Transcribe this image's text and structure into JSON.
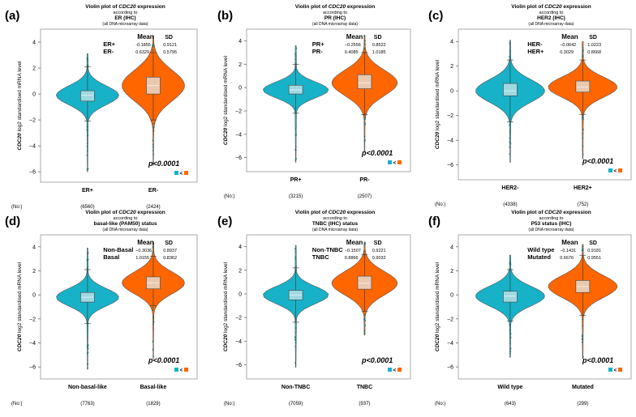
{
  "figure": {
    "title_prefix": "Violin plot of ",
    "gene": "CDC20",
    "title_suffix": " expression",
    "according_to": "according to",
    "data_note": "(all DNA microarray data)",
    "ylabel_gene": "CDC20",
    "ylabel_rest": " log2 standardised mRNA level",
    "n_label": "(No:)",
    "mean_header": "Mean",
    "sd_header": "SD",
    "pvalue": "p<0.0001",
    "compare_symbol": "<",
    "colors": {
      "group1": "#17b2c8",
      "group2": "#ff6600",
      "outline": "#555555",
      "box": "#e9c9b0"
    }
  },
  "chart_data": [
    {
      "panel_label": "(a)",
      "type": "violin",
      "subtitle": "ER (IHC)",
      "groups": [
        {
          "name": "ER+",
          "stat_label": "ER+",
          "mean": "-0.1855",
          "sd": "0.9121",
          "n": "(6560)",
          "median": -0.1,
          "q1": -0.55,
          "q3": 0.25,
          "whisker_low": -2.1,
          "whisker_high": 2.1,
          "min": -6.0,
          "max": 3.1,
          "color": "#17b2c8"
        },
        {
          "name": "ER-",
          "stat_label": "ER-",
          "mean": "0.6329",
          "sd": "0.5795",
          "n": "(2424)",
          "median": 0.65,
          "q1": 0.0,
          "q3": 1.3,
          "whisker_low": -2.0,
          "whisker_high": 3.2,
          "min": -5.5,
          "max": 4.5,
          "color": "#ff6600"
        }
      ],
      "yticks": [
        4,
        2,
        0,
        -2,
        -4,
        -6
      ],
      "ylim": [
        -6.8,
        5.0
      ]
    },
    {
      "panel_label": "(b)",
      "type": "violin",
      "subtitle": "PR (IHC)",
      "groups": [
        {
          "name": "PR+",
          "stat_label": "PR+",
          "mean": "−0.2556",
          "sd": "0.8522",
          "n": "(3215)",
          "median": -0.2,
          "q1": -0.55,
          "q3": 0.2,
          "whisker_low": -2.2,
          "whisker_high": 2.0,
          "min": -6.4,
          "max": 3.6,
          "color": "#17b2c8"
        },
        {
          "name": "PR-",
          "stat_label": "PR-",
          "mean": "0.4085",
          "sd": "1.0185",
          "n": "(2507)",
          "median": 0.4,
          "q1": -0.1,
          "q3": 1.1,
          "whisker_low": -2.3,
          "whisker_high": 3.0,
          "min": -5.5,
          "max": 4.5,
          "color": "#ff6600"
        }
      ],
      "yticks": [
        4,
        2,
        0,
        -2,
        -4,
        -6
      ],
      "ylim": [
        -7.2,
        5.0
      ]
    },
    {
      "panel_label": "(c)",
      "type": "violin",
      "subtitle": "HER2 (IHC)",
      "groups": [
        {
          "name": "HER2-",
          "stat_label": "HER-",
          "mean": "−0.0642",
          "sd": "1.0223",
          "n": "(4338)",
          "median": 0.0,
          "q1": -0.4,
          "q3": 0.6,
          "whisker_low": -2.5,
          "whisker_high": 2.5,
          "min": -5.8,
          "max": 4.1,
          "color": "#17b2c8"
        },
        {
          "name": "HER2+",
          "stat_label": "HER+",
          "mean": "0.3029",
          "sd": "0.8668",
          "n": "(752)",
          "median": 0.3,
          "q1": -0.1,
          "q3": 0.8,
          "whisker_low": -1.9,
          "whisker_high": 2.5,
          "min": -5.5,
          "max": 4.0,
          "color": "#ff6600"
        }
      ],
      "yticks": [
        4,
        2,
        0,
        -2,
        -4,
        -6
      ],
      "ylim": [
        -7.2,
        5.0
      ]
    },
    {
      "panel_label": "(d)",
      "type": "violin",
      "subtitle": "basal-like (PAM50) status",
      "groups": [
        {
          "name": "Non-basal-like",
          "stat_label": "Non-Basal",
          "mean": "−0.3036",
          "sd": "0.8937",
          "n": "(7763)",
          "median": -0.2,
          "q1": -0.6,
          "q3": 0.2,
          "whisker_low": -2.4,
          "whisker_high": 2.1,
          "min": -6.2,
          "max": 3.9,
          "color": "#17b2c8"
        },
        {
          "name": "Basal-like",
          "stat_label": "Basal",
          "mean": "1.0155",
          "sd": "0.8362",
          "n": "(1829)",
          "median": 1.0,
          "q1": 0.5,
          "q3": 1.5,
          "whisker_low": -0.9,
          "whisker_high": 3.2,
          "min": -5.3,
          "max": 4.4,
          "color": "#ff6600"
        }
      ],
      "yticks": [
        4,
        2,
        0,
        -2,
        -4,
        -6
      ],
      "ylim": [
        -7.0,
        5.0
      ]
    },
    {
      "panel_label": "(e)",
      "type": "violin",
      "subtitle": "TNBC (IHC) status",
      "groups": [
        {
          "name": "Non-TNBC",
          "stat_label": "Non-TNBC",
          "mean": "−0.1507",
          "sd": "0.9221",
          "n": "(7059)",
          "median": -0.1,
          "q1": -0.5,
          "q3": 0.3,
          "whisker_low": -2.4,
          "whisker_high": 2.2,
          "min": -6.2,
          "max": 4.1,
          "color": "#17b2c8"
        },
        {
          "name": "TNBC",
          "stat_label": "TNBC",
          "mean": "0.8866",
          "sd": "0.9032",
          "n": "(937)",
          "median": 0.9,
          "q1": 0.4,
          "q3": 1.5,
          "whisker_low": -1.5,
          "whisker_high": 3.3,
          "min": -3.5,
          "max": 4.4,
          "color": "#ff6600"
        }
      ],
      "yticks": [
        4,
        2,
        0,
        -2,
        -4,
        -6
      ],
      "ylim": [
        -7.2,
        5.0
      ]
    },
    {
      "panel_label": "(f)",
      "type": "violin",
      "subtitle": "P53 status (IHC)",
      "groups": [
        {
          "name": "Wild type",
          "stat_label": "Wild type",
          "mean": "−0.1431",
          "sd": "0.9181",
          "n": "(643)",
          "median": -0.1,
          "q1": -0.6,
          "q3": 0.3,
          "whisker_low": -2.2,
          "whisker_high": 2.1,
          "min": -5.2,
          "max": 3.3,
          "color": "#17b2c8"
        },
        {
          "name": "Mutated",
          "stat_label": "Mutated",
          "mean": "0.6676",
          "sd": "0.9551",
          "n": "(299)",
          "median": 0.7,
          "q1": 0.2,
          "q3": 1.2,
          "whisker_low": -1.7,
          "whisker_high": 3.3,
          "min": -5.3,
          "max": 4.2,
          "color": "#ff6600"
        }
      ],
      "yticks": [
        4,
        2,
        0,
        -2,
        -4,
        -6
      ],
      "ylim": [
        -7.0,
        5.0
      ]
    }
  ]
}
